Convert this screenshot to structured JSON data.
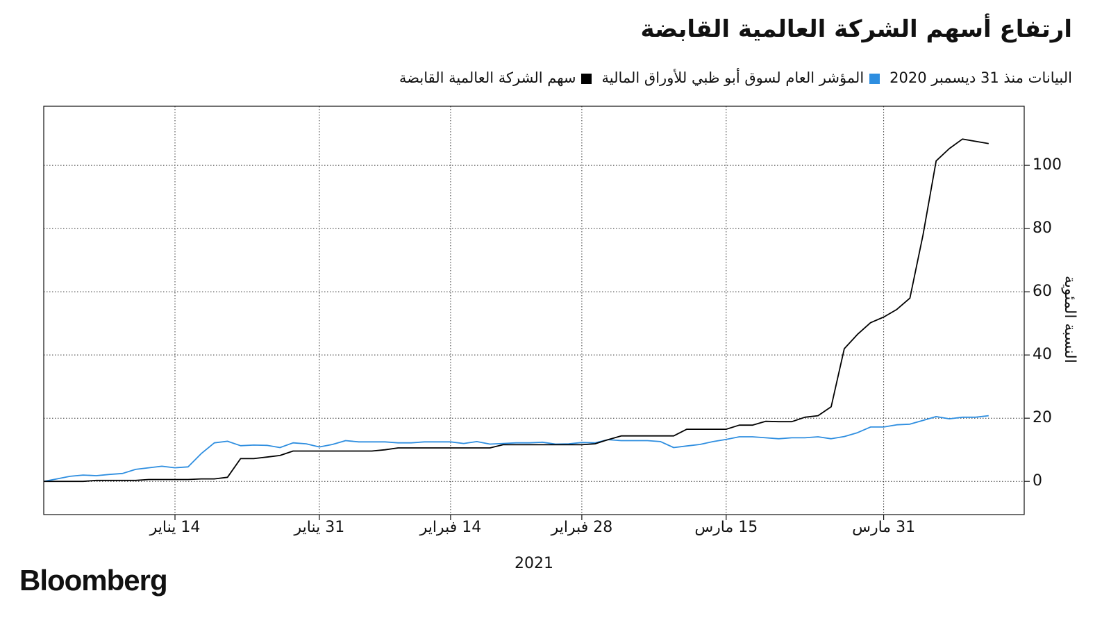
{
  "brand": "Bloomberg",
  "chart_data": {
    "type": "line",
    "title": "ارتفاع أسهم الشركة العالمية القابضة",
    "subtitle": "البيانات منذ 31 ديسمبر 2020",
    "x_label": "2021",
    "y_label": "النسبة المئوية",
    "categories": [
      null,
      null,
      null,
      null,
      null,
      null,
      null,
      null,
      null,
      null,
      "14 يناير",
      null,
      null,
      null,
      null,
      null,
      null,
      null,
      null,
      null,
      null,
      "31 يناير",
      null,
      null,
      null,
      null,
      null,
      null,
      null,
      null,
      null,
      "14 فبراير",
      null,
      null,
      null,
      null,
      null,
      null,
      null,
      null,
      null,
      "28 فبراير",
      null,
      null,
      null,
      null,
      null,
      null,
      null,
      null,
      null,
      null,
      "15 مارس",
      null,
      null,
      null,
      null,
      null,
      null,
      null,
      null,
      null,
      null,
      null,
      "31 مارس",
      null,
      null,
      null,
      null,
      null,
      null,
      null,
      null
    ],
    "series": [
      {
        "name": "المؤشر العام لسوق أبو ظبي للأوراق المالية",
        "color": "#2e8ee0",
        "values": [
          0,
          0.8,
          1.6,
          2,
          1.8,
          2.2,
          2.5,
          3.8,
          4.3,
          4.8,
          4.3,
          4.6,
          8.8,
          12.2,
          12.7,
          11.3,
          11.5,
          11.4,
          10.7,
          12.2,
          11.9,
          10.9,
          11.7,
          12.9,
          12.5,
          12.5,
          12.5,
          12.2,
          12.2,
          12.5,
          12.5,
          12.5,
          12,
          12.6,
          11.8,
          12,
          12.2,
          12.2,
          12.4,
          11.8,
          11.9,
          12.3,
          12.2,
          13.2,
          12.9,
          12.9,
          12.9,
          12.6,
          10.7,
          11.2,
          11.7,
          12.6,
          13.3,
          14.1,
          14.1,
          13.8,
          13.5,
          13.8,
          13.8,
          14.1,
          13.5,
          14.2,
          15.4,
          17.2,
          17.2,
          17.9,
          18.1,
          19.3,
          20.5,
          19.8,
          20.3,
          20.3,
          20.8
        ]
      },
      {
        "name": "سهم الشركة العالمية القابضة",
        "color": "#000000",
        "values": [
          0,
          0,
          0,
          0,
          0.3,
          0.3,
          0.3,
          0.3,
          0.6,
          0.6,
          0.6,
          0.6,
          0.8,
          0.8,
          1.3,
          7.2,
          7.2,
          7.7,
          8.2,
          9.6,
          9.6,
          9.6,
          9.6,
          9.6,
          9.6,
          9.6,
          10,
          10.6,
          10.6,
          10.6,
          10.6,
          10.6,
          10.6,
          10.6,
          10.6,
          11.6,
          11.6,
          11.6,
          11.6,
          11.6,
          11.6,
          11.6,
          11.9,
          13.2,
          14.4,
          14.4,
          14.4,
          14.4,
          14.4,
          16.5,
          16.5,
          16.5,
          16.5,
          17.8,
          17.8,
          19,
          18.9,
          18.9,
          20.3,
          20.8,
          23.6,
          42,
          46.5,
          50.2,
          52,
          54.4,
          58,
          78,
          101.4,
          105.3,
          108.3,
          107.6,
          106.9
        ]
      }
    ],
    "ylim": [
      -10.5,
      118.7
    ],
    "yticks": [
      0,
      20,
      40,
      60,
      80,
      100
    ],
    "grid": true
  }
}
